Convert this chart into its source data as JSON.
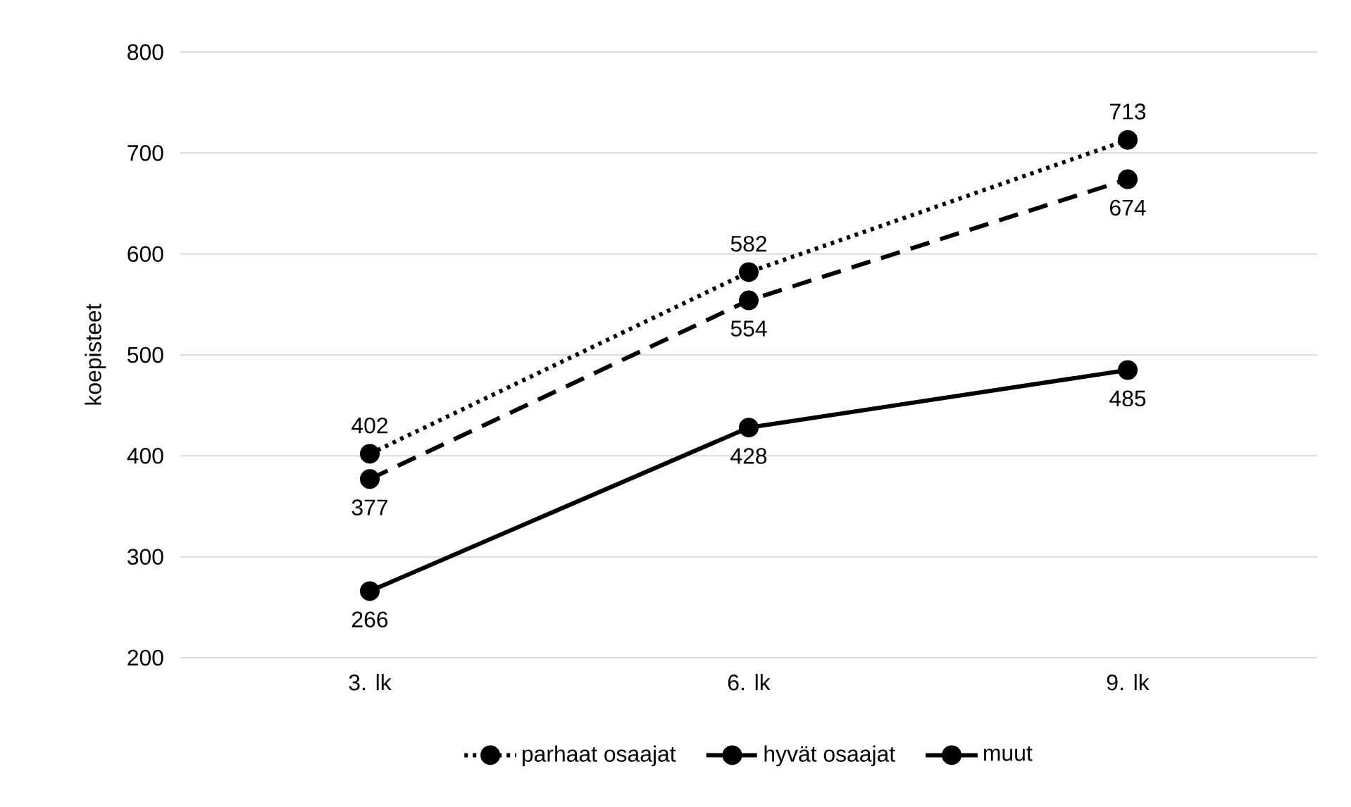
{
  "chart_data": {
    "type": "line",
    "ylabel": "koepisteet",
    "categories": [
      "3. lk",
      "6. lk",
      "9. lk"
    ],
    "series": [
      {
        "name": "parhaat osaajat",
        "color": "#000000",
        "line_style": "dotted",
        "values": [
          402,
          582,
          713
        ]
      },
      {
        "name": "hyvät osaajat",
        "color": "#000000",
        "line_style": "dashed",
        "values": [
          377,
          554,
          674
        ]
      },
      {
        "name": "muut",
        "color": "#000000",
        "line_style": "solid",
        "values": [
          266,
          428,
          485
        ]
      }
    ],
    "ylim": [
      200,
      800
    ],
    "yticks": [
      200,
      300,
      400,
      500,
      600,
      700,
      800
    ],
    "grid": "y",
    "legend": "bottom",
    "marker": "circle",
    "data_labels": true
  }
}
